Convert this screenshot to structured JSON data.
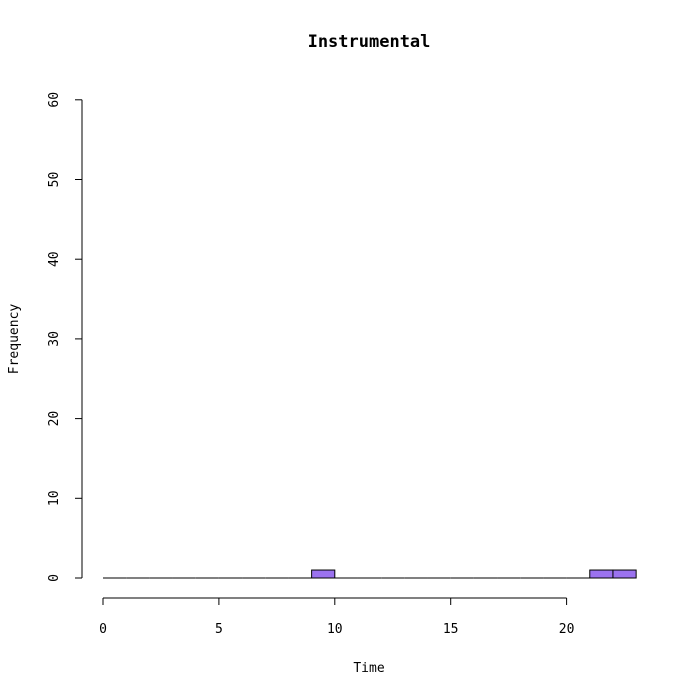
{
  "chart_data": {
    "type": "bar",
    "title": "Instrumental",
    "xlabel": "Time",
    "ylabel": "Frequency",
    "xlim": [
      0,
      24
    ],
    "ylim": [
      0,
      60
    ],
    "xticks": [
      "0",
      "5",
      "10",
      "15",
      "20"
    ],
    "yticks": [
      "0",
      "10",
      "20",
      "30",
      "40",
      "50",
      "60"
    ],
    "bin_width": 1,
    "bins": [
      {
        "start": 0,
        "end": 1,
        "count": 0
      },
      {
        "start": 1,
        "end": 2,
        "count": 0
      },
      {
        "start": 2,
        "end": 3,
        "count": 0
      },
      {
        "start": 3,
        "end": 4,
        "count": 0
      },
      {
        "start": 4,
        "end": 5,
        "count": 0
      },
      {
        "start": 5,
        "end": 6,
        "count": 0
      },
      {
        "start": 6,
        "end": 7,
        "count": 0
      },
      {
        "start": 7,
        "end": 8,
        "count": 0
      },
      {
        "start": 8,
        "end": 9,
        "count": 0
      },
      {
        "start": 9,
        "end": 10,
        "count": 1
      },
      {
        "start": 10,
        "end": 11,
        "count": 0
      },
      {
        "start": 11,
        "end": 12,
        "count": 0
      },
      {
        "start": 12,
        "end": 13,
        "count": 0
      },
      {
        "start": 13,
        "end": 14,
        "count": 0
      },
      {
        "start": 14,
        "end": 15,
        "count": 0
      },
      {
        "start": 15,
        "end": 16,
        "count": 0
      },
      {
        "start": 16,
        "end": 17,
        "count": 0
      },
      {
        "start": 17,
        "end": 18,
        "count": 0
      },
      {
        "start": 18,
        "end": 19,
        "count": 0
      },
      {
        "start": 19,
        "end": 20,
        "count": 0
      },
      {
        "start": 20,
        "end": 21,
        "count": 0
      },
      {
        "start": 21,
        "end": 22,
        "count": 1
      },
      {
        "start": 22,
        "end": 23,
        "count": 1
      }
    ],
    "bar_color": "#9b72ef",
    "bar_edge_color": "#000000",
    "grid": false,
    "legend": "none"
  }
}
